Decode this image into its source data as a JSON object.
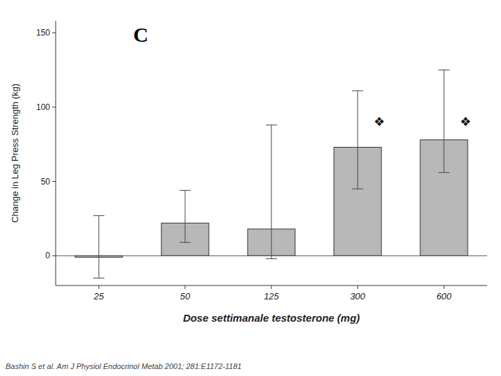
{
  "chart_data": {
    "type": "bar",
    "panel_label": "C",
    "xlabel": "Dose settimanale testosterone (mg)",
    "ylabel": "Change in Leg Press Strength (kg)",
    "citation": "Bashin S et al. Am J Physiol Endocrinol Metab 2001; 281:E1172-1181",
    "categories": [
      "25",
      "50",
      "125",
      "300",
      "600"
    ],
    "values": [
      -1,
      22,
      18,
      73,
      78
    ],
    "errors_upper": [
      28,
      22,
      70,
      38,
      47
    ],
    "errors_lower": [
      14,
      13,
      20,
      28,
      22
    ],
    "color": "#b8b8b8",
    "ylim": [
      -20,
      158
    ],
    "yticks": [
      0,
      50,
      100,
      150
    ],
    "grid": false,
    "annotations": [
      {
        "text": "❖",
        "x": "300",
        "y": 90
      },
      {
        "text": "❖",
        "x": "600",
        "y": 90
      }
    ]
  }
}
